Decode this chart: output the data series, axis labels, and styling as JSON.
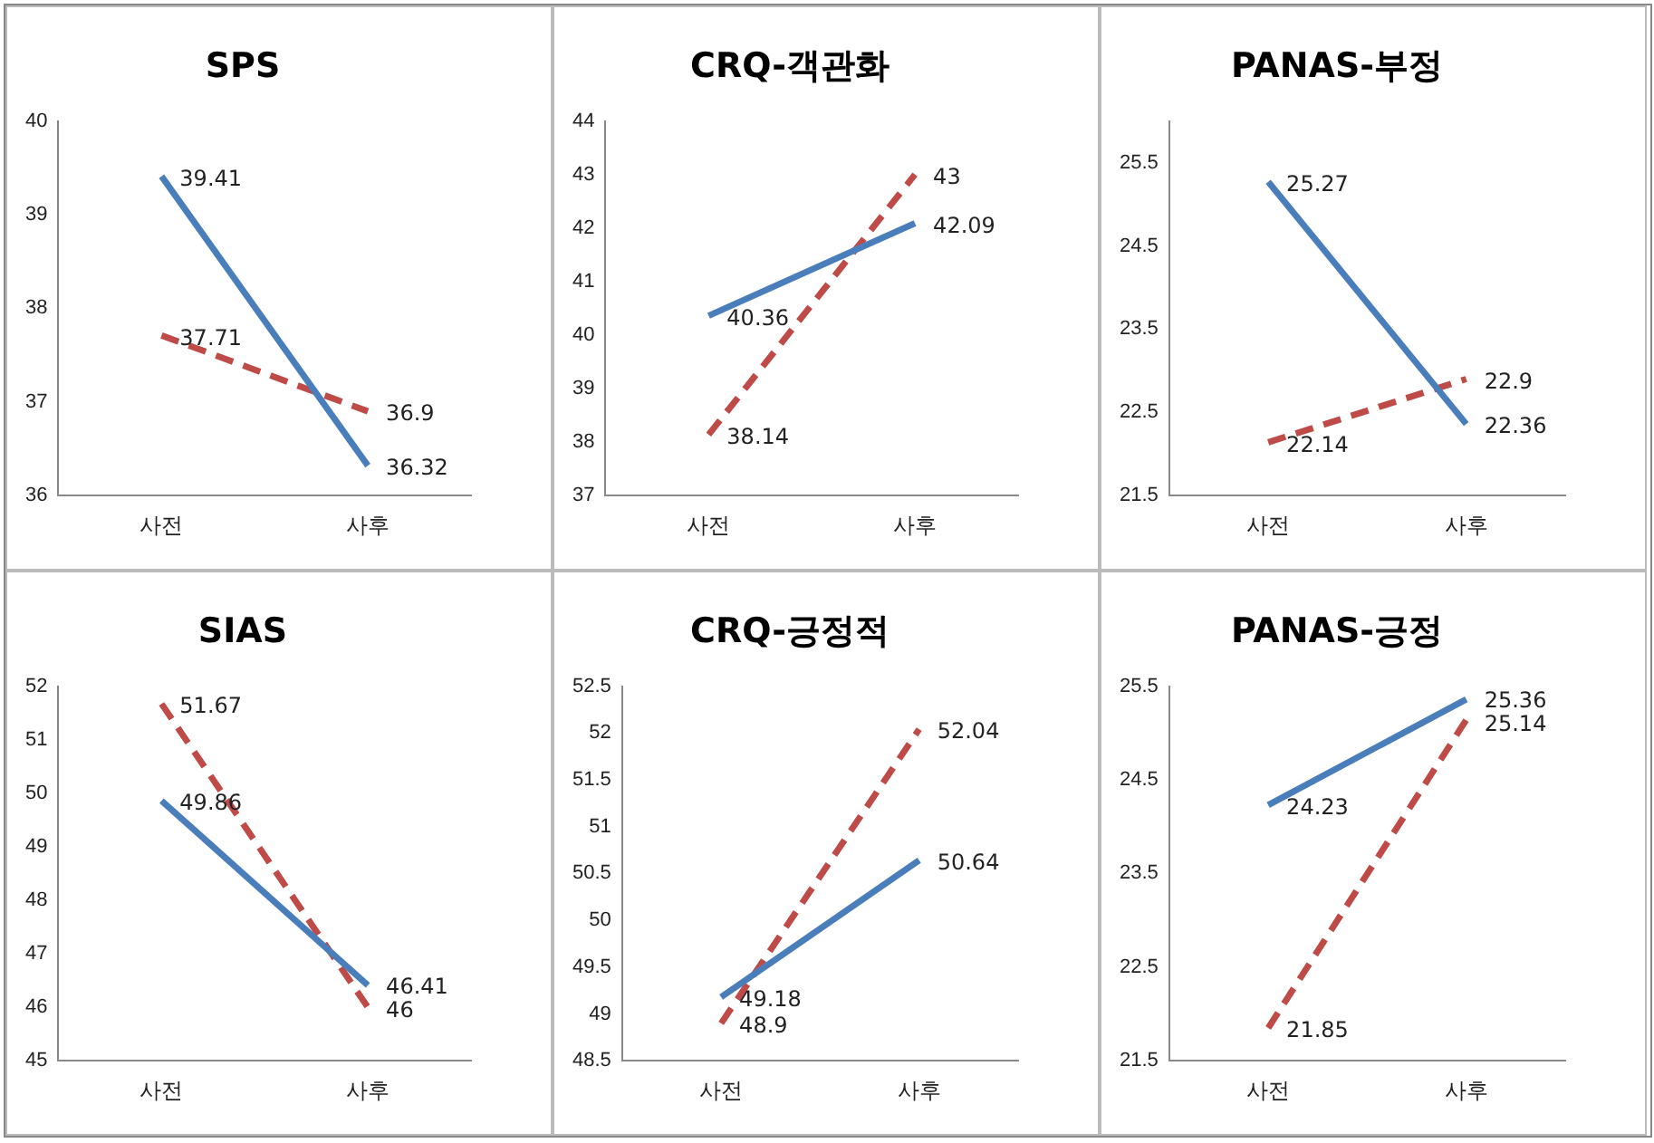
{
  "chart_data": [
    {
      "type": "line",
      "title": "SPS",
      "categories": [
        "사전",
        "사후"
      ],
      "ylim": [
        36,
        40
      ],
      "yticks": [
        36,
        37,
        38,
        39,
        40
      ],
      "grid": false,
      "legend": false,
      "marker": "none",
      "data_labels": true,
      "series": [
        {
          "color": "#4a7ebb",
          "line_style": "solid",
          "values": [
            39.41,
            36.32
          ]
        },
        {
          "color": "#be4b48",
          "line_style": "dashed",
          "values": [
            37.71,
            36.9
          ]
        }
      ]
    },
    {
      "type": "line",
      "title": "CRQ-객관화",
      "categories": [
        "사전",
        "사후"
      ],
      "ylim": [
        37,
        44
      ],
      "yticks": [
        37,
        38,
        39,
        40,
        41,
        42,
        43,
        44
      ],
      "grid": false,
      "legend": false,
      "marker": "none",
      "data_labels": true,
      "series": [
        {
          "color": "#4a7ebb",
          "line_style": "solid",
          "values": [
            40.36,
            42.09
          ]
        },
        {
          "color": "#be4b48",
          "line_style": "dashed",
          "values": [
            38.14,
            43
          ]
        }
      ]
    },
    {
      "type": "line",
      "title": "PANAS-부정",
      "categories": [
        "사전",
        "사후"
      ],
      "ylim": [
        21.5,
        26
      ],
      "yticks": [
        21.5,
        22.5,
        23.5,
        24.5,
        25.5
      ],
      "grid": false,
      "legend": false,
      "marker": "none",
      "data_labels": true,
      "series": [
        {
          "color": "#4a7ebb",
          "line_style": "solid",
          "values": [
            25.27,
            22.36
          ]
        },
        {
          "color": "#be4b48",
          "line_style": "dashed",
          "values": [
            22.14,
            22.9
          ]
        }
      ]
    },
    {
      "type": "line",
      "title": "SIAS",
      "categories": [
        "사전",
        "사후"
      ],
      "ylim": [
        45,
        52
      ],
      "yticks": [
        45,
        46,
        47,
        48,
        49,
        50,
        51,
        52
      ],
      "grid": false,
      "legend": false,
      "marker": "none",
      "data_labels": true,
      "series": [
        {
          "color": "#4a7ebb",
          "line_style": "solid",
          "values": [
            49.86,
            46.41
          ]
        },
        {
          "color": "#be4b48",
          "line_style": "dashed",
          "values": [
            51.67,
            46
          ]
        }
      ]
    },
    {
      "type": "line",
      "title": "CRQ-긍정적",
      "categories": [
        "사전",
        "사후"
      ],
      "ylim": [
        48.5,
        52.5
      ],
      "yticks": [
        48.5,
        49,
        49.5,
        50,
        50.5,
        51,
        51.5,
        52,
        52.5
      ],
      "grid": false,
      "legend": false,
      "marker": "none",
      "data_labels": true,
      "series": [
        {
          "color": "#4a7ebb",
          "line_style": "solid",
          "values": [
            49.18,
            50.64
          ]
        },
        {
          "color": "#be4b48",
          "line_style": "dashed",
          "values": [
            48.9,
            52.04
          ]
        }
      ]
    },
    {
      "type": "line",
      "title": "PANAS-긍정",
      "categories": [
        "사전",
        "사후"
      ],
      "ylim": [
        21.5,
        25.5
      ],
      "yticks": [
        21.5,
        22.5,
        23.5,
        24.5,
        25.5
      ],
      "grid": false,
      "legend": false,
      "marker": "none",
      "data_labels": true,
      "series": [
        {
          "color": "#4a7ebb",
          "line_style": "solid",
          "values": [
            24.23,
            25.36
          ]
        },
        {
          "color": "#be4b48",
          "line_style": "dashed",
          "values": [
            21.85,
            25.14
          ]
        }
      ]
    }
  ]
}
